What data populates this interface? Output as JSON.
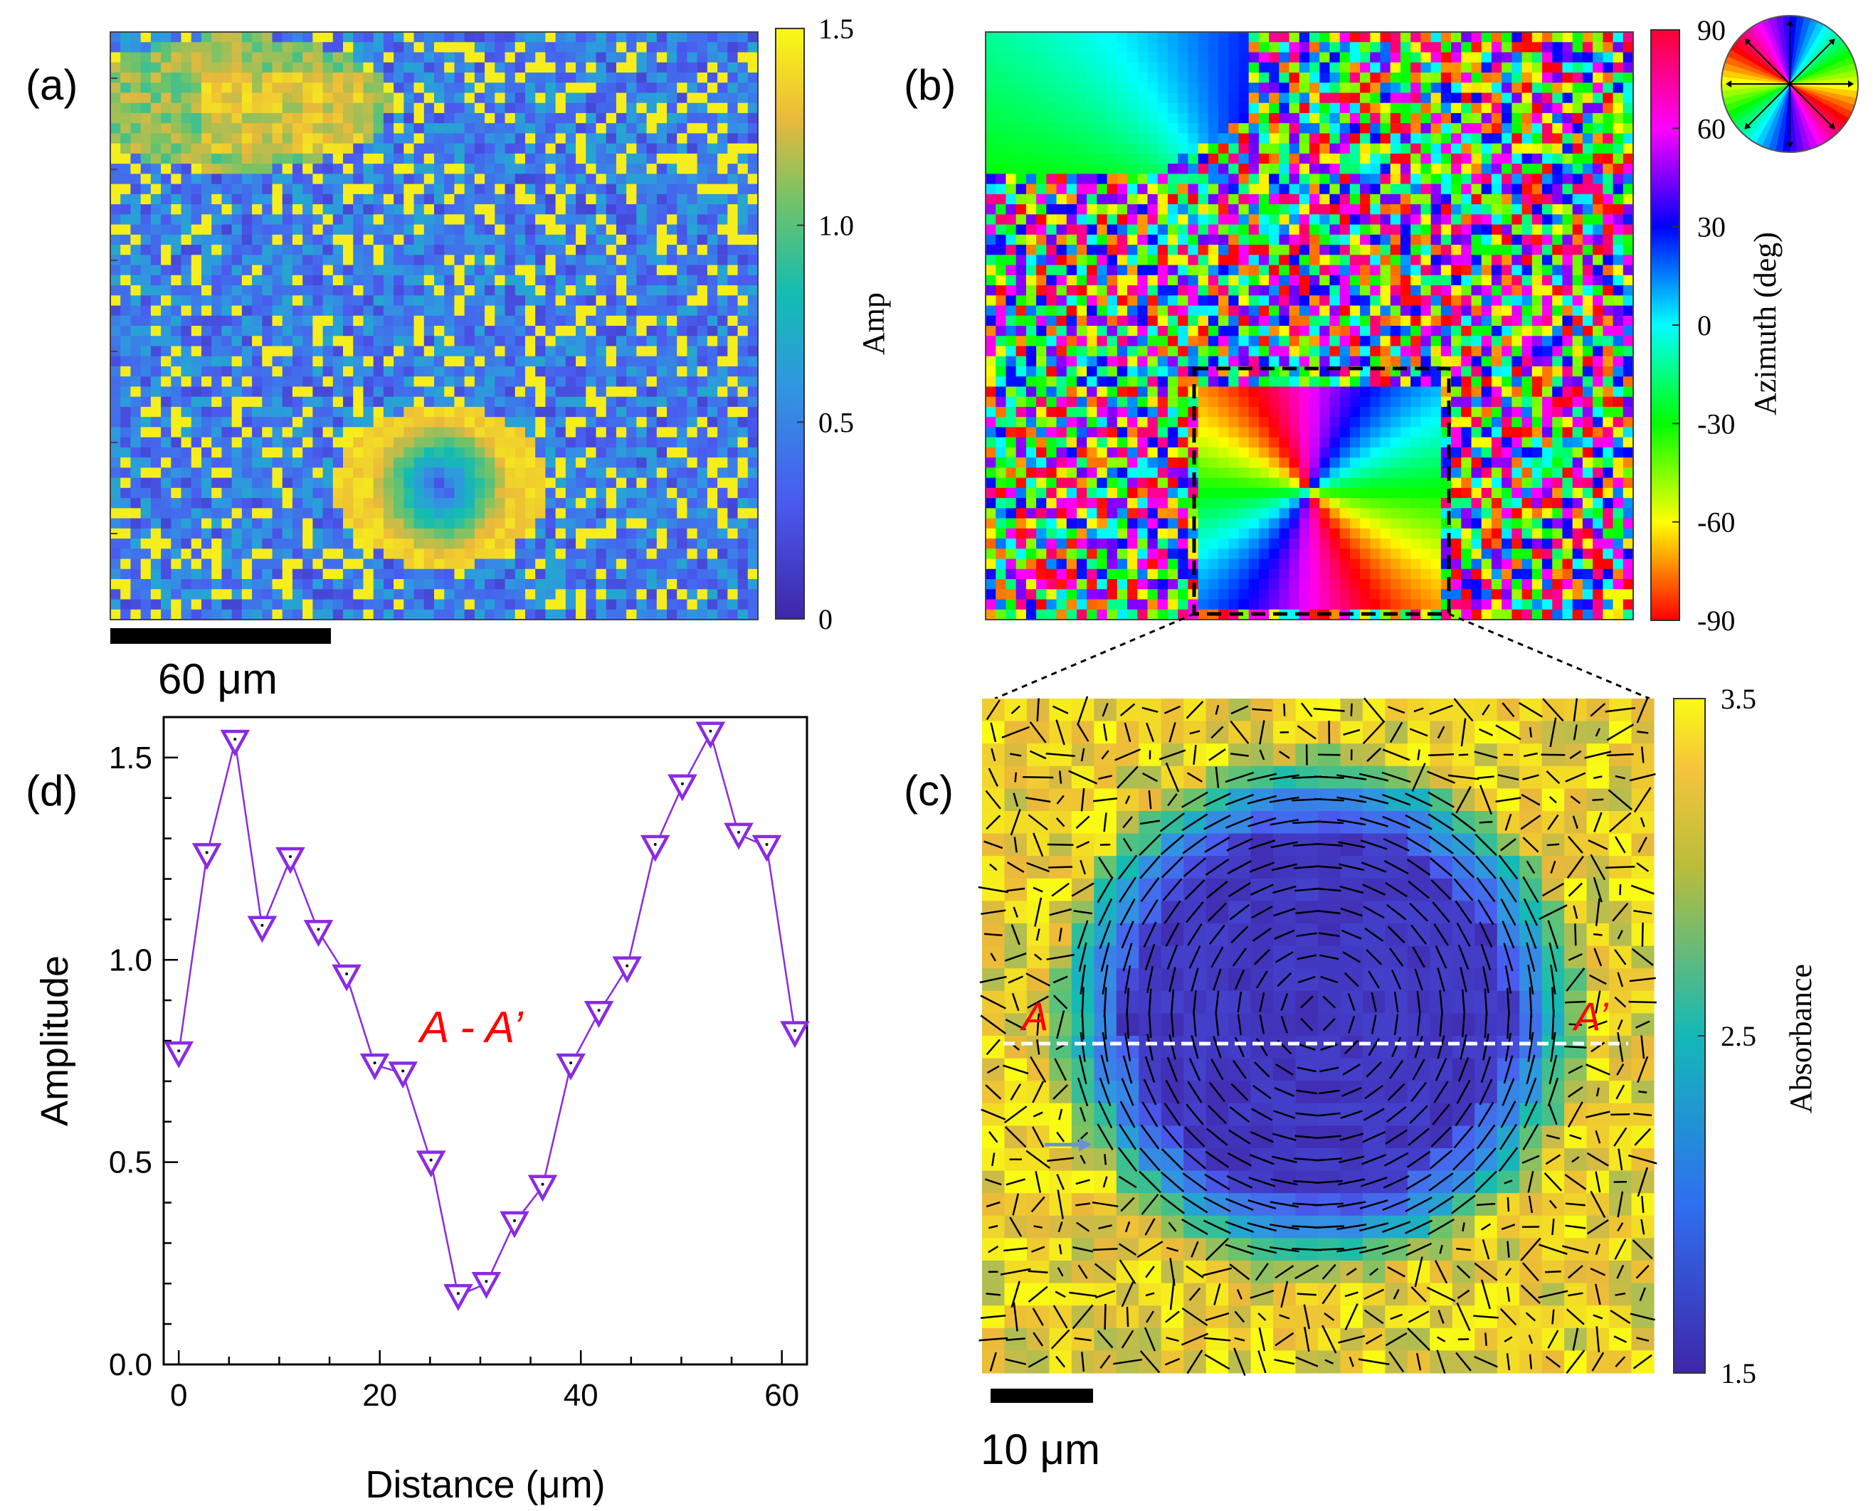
{
  "panels": {
    "a": {
      "label": "(a)",
      "scalebar": "60 μm"
    },
    "b": {
      "label": "(b)"
    },
    "c": {
      "label": "(c)",
      "scalebar": "10 μm",
      "marker_a": "A",
      "marker_a_prime": "A’"
    },
    "d": {
      "label": "(d)",
      "annotation": "A - A’"
    }
  },
  "chart_data": [
    {
      "type": "heatmap",
      "panel": "a",
      "title": "",
      "colorbar_label": "Amp",
      "colorbar_ticks": [
        "0",
        "0.5",
        "1.0",
        "1.5"
      ],
      "range": [
        0,
        1.5
      ],
      "grid_cells": [
        64,
        58
      ],
      "colors": {
        "low": "#3d2f9b",
        "mid": "#1fb7b1",
        "high": "#f9f91e"
      }
    },
    {
      "type": "heatmap",
      "panel": "b",
      "title": "",
      "colorbar_label": "Azimuth (deg)",
      "colorbar_ticks": [
        "-90",
        "-60",
        "-30",
        "0",
        "30",
        "60",
        "90"
      ],
      "range": [
        -90,
        90
      ],
      "grid_cells": [
        64,
        58
      ],
      "colors": {
        "red": "#ff0000",
        "yellow": "#ffff00",
        "green": "#00ff00",
        "cyan": "#00ffff",
        "blue": "#0000ff",
        "magenta": "#ff00ff"
      }
    },
    {
      "type": "heatmap",
      "panel": "c",
      "title": "",
      "colorbar_label": "Absorbance",
      "colorbar_ticks": [
        "1.5",
        "2.5",
        "3.5"
      ],
      "range": [
        1.5,
        3.5
      ],
      "grid_cells": [
        30,
        30
      ],
      "overlay": "azimuthal orientation sticks",
      "line_cut": "A - A’",
      "colors": {
        "low": "#3f2b9f",
        "high": "#f9f71e",
        "line_cut": "#ffffff",
        "marker": "#ff0000"
      }
    },
    {
      "type": "line",
      "panel": "d",
      "title": "",
      "xlabel": "Distance (μm)",
      "ylabel": "Amplitude",
      "xlim": [
        -1.5,
        62.5
      ],
      "ylim": [
        0,
        1.6
      ],
      "xticks": [
        "0",
        "20",
        "40",
        "60"
      ],
      "yticks": [
        "0.0",
        "0.5",
        "1.0",
        "1.5"
      ],
      "marker": "down-triangle",
      "color": "#8a2be2",
      "series": [
        {
          "name": "A - A’",
          "x": [
            0,
            2.8,
            5.6,
            8.3,
            11.1,
            13.9,
            16.7,
            19.5,
            22.3,
            25.1,
            27.8,
            30.6,
            33.4,
            36.2,
            39.0,
            41.8,
            44.6,
            47.4,
            50.1,
            52.9,
            55.7,
            58.5,
            61.3
          ],
          "y": [
            0.77,
            1.26,
            1.54,
            1.08,
            1.25,
            1.07,
            0.96,
            0.74,
            0.72,
            0.5,
            0.17,
            0.2,
            0.35,
            0.44,
            0.74,
            0.87,
            0.98,
            1.28,
            1.43,
            1.56,
            1.31,
            1.28,
            0.82
          ]
        }
      ]
    }
  ]
}
